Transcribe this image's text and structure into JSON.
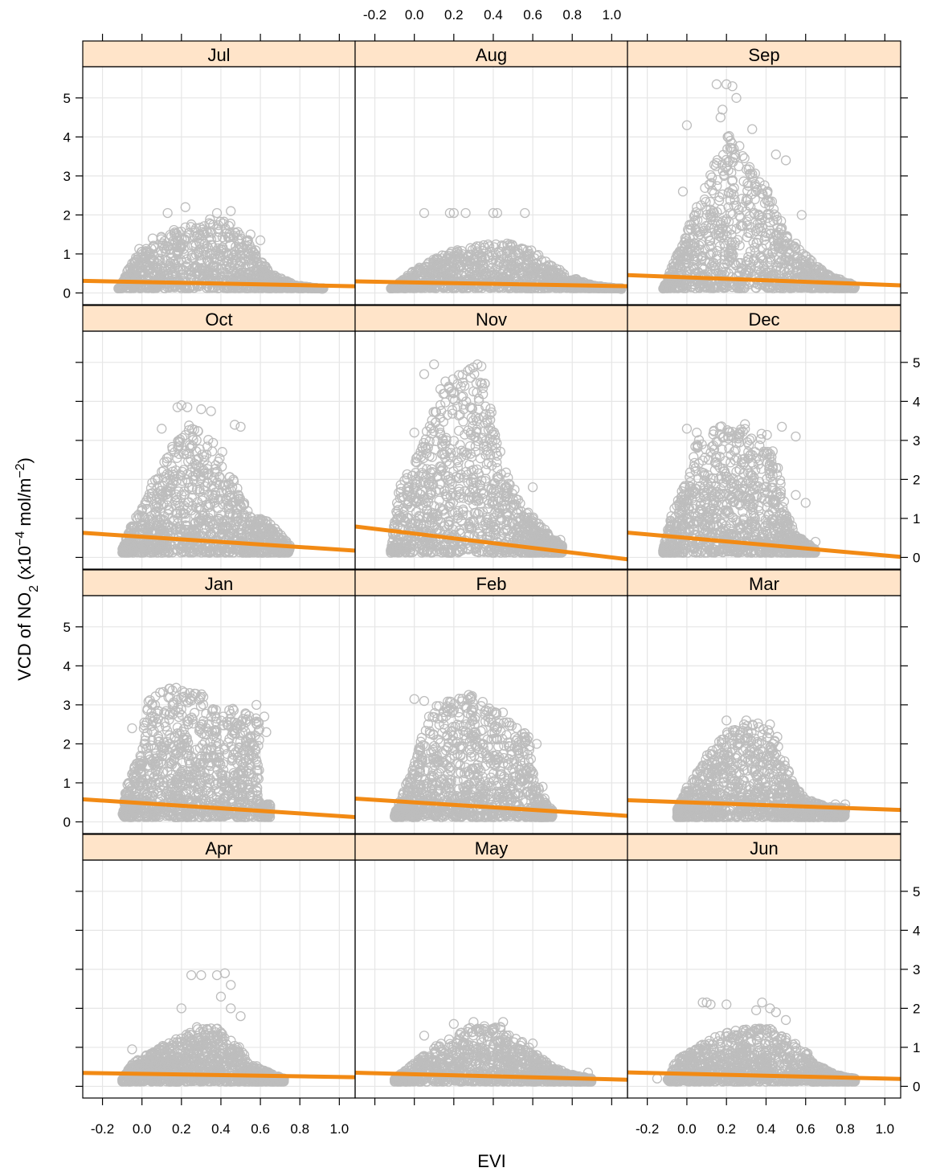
{
  "chart_data": {
    "type": "scatter",
    "xlabel": "EVI",
    "ylabel": {
      "prefix": "VCD of NO",
      "sub": "2",
      "mid": " (x10",
      "sup1": "−4",
      "mid2": " mol/m",
      "sup2": "−2",
      "suffix": ")"
    },
    "xlim": [
      -0.3,
      1.08
    ],
    "ylim": [
      -0.3,
      5.8
    ],
    "x_ticks": [
      -0.2,
      0.0,
      0.2,
      0.4,
      0.6,
      0.8,
      1.0
    ],
    "x_tick_labels": [
      "-0.2",
      "0.0",
      "0.2",
      "0.4",
      "0.6",
      "0.8",
      "1.0"
    ],
    "y_ticks": [
      0,
      1,
      2,
      3,
      4,
      5
    ],
    "y_tick_labels": [
      "0",
      "1",
      "2",
      "3",
      "4",
      "5"
    ],
    "grid": true,
    "colors": {
      "points": "#bdbdbd",
      "fit_line": "#f28a14",
      "strip_bg": "#ffe4c9",
      "grid": "#e6e6e6",
      "frame": "#000000"
    },
    "panels": [
      {
        "month": "Jul",
        "fit": [
          0.28,
          -0.1
        ],
        "envelope": [
          [
            -0.12,
            0.1
          ],
          [
            0.0,
            1.3
          ],
          [
            0.15,
            1.6
          ],
          [
            0.25,
            1.8
          ],
          [
            0.35,
            1.9
          ],
          [
            0.45,
            1.8
          ],
          [
            0.55,
            1.3
          ],
          [
            0.65,
            0.5
          ],
          [
            0.78,
            0.2
          ],
          [
            0.92,
            0.1
          ]
        ],
        "outliers": [
          [
            0.22,
            2.2
          ],
          [
            0.13,
            2.05
          ],
          [
            0.38,
            2.05
          ],
          [
            0.45,
            2.1
          ],
          [
            0.55,
            1.5
          ],
          [
            0.6,
            1.35
          ]
        ]
      },
      {
        "month": "Aug",
        "fit": [
          0.27,
          -0.09
        ],
        "envelope": [
          [
            -0.12,
            0.1
          ],
          [
            0.0,
            0.6
          ],
          [
            0.15,
            1.0
          ],
          [
            0.3,
            1.25
          ],
          [
            0.45,
            1.3
          ],
          [
            0.6,
            1.1
          ],
          [
            0.7,
            0.7
          ],
          [
            0.8,
            0.4
          ],
          [
            0.9,
            0.2
          ],
          [
            1.05,
            0.1
          ]
        ],
        "outliers": [
          [
            0.05,
            2.05
          ],
          [
            0.18,
            2.05
          ],
          [
            0.2,
            2.05
          ],
          [
            0.26,
            2.05
          ],
          [
            0.4,
            2.05
          ],
          [
            0.42,
            2.05
          ],
          [
            0.56,
            2.05
          ]
        ]
      },
      {
        "month": "Sep",
        "fit": [
          0.4,
          -0.19
        ],
        "envelope": [
          [
            -0.12,
            0.1
          ],
          [
            -0.05,
            1.0
          ],
          [
            0.05,
            2.2
          ],
          [
            0.15,
            3.5
          ],
          [
            0.2,
            4.1
          ],
          [
            0.3,
            3.6
          ],
          [
            0.4,
            2.7
          ],
          [
            0.5,
            1.6
          ],
          [
            0.6,
            1.0
          ],
          [
            0.7,
            0.5
          ],
          [
            0.85,
            0.2
          ]
        ],
        "outliers": [
          [
            0.15,
            5.35
          ],
          [
            0.2,
            5.35
          ],
          [
            0.23,
            5.3
          ],
          [
            0.25,
            5.0
          ],
          [
            0.18,
            4.7
          ],
          [
            0.17,
            4.5
          ],
          [
            0.0,
            4.3
          ],
          [
            0.33,
            4.2
          ],
          [
            0.45,
            3.55
          ],
          [
            0.5,
            3.4
          ],
          [
            -0.02,
            2.6
          ],
          [
            0.05,
            2.2
          ],
          [
            0.58,
            2.0
          ]
        ]
      },
      {
        "month": "Oct",
        "fit": [
          0.53,
          -0.33
        ],
        "envelope": [
          [
            -0.1,
            0.2
          ],
          [
            -0.05,
            0.9
          ],
          [
            0.05,
            1.9
          ],
          [
            0.15,
            2.8
          ],
          [
            0.22,
            3.5
          ],
          [
            0.3,
            3.3
          ],
          [
            0.4,
            2.8
          ],
          [
            0.5,
            1.6
          ],
          [
            0.55,
            1.1
          ],
          [
            0.65,
            0.9
          ],
          [
            0.75,
            0.3
          ]
        ],
        "outliers": [
          [
            0.18,
            3.85
          ],
          [
            0.2,
            3.9
          ],
          [
            0.23,
            3.85
          ],
          [
            0.3,
            3.8
          ],
          [
            0.35,
            3.75
          ],
          [
            0.47,
            3.4
          ],
          [
            0.5,
            3.35
          ],
          [
            0.1,
            3.3
          ]
        ]
      },
      {
        "month": "Nov",
        "fit": [
          0.61,
          -0.61
        ],
        "envelope": [
          [
            -0.12,
            0.2
          ],
          [
            -0.08,
            1.8
          ],
          [
            0.0,
            2.5
          ],
          [
            0.1,
            3.8
          ],
          [
            0.15,
            4.8
          ],
          [
            0.25,
            4.9
          ],
          [
            0.35,
            4.85
          ],
          [
            0.4,
            3.6
          ],
          [
            0.45,
            2.5
          ],
          [
            0.55,
            1.3
          ],
          [
            0.65,
            0.8
          ],
          [
            0.75,
            0.3
          ]
        ],
        "outliers": [
          [
            0.05,
            4.7
          ],
          [
            0.1,
            4.95
          ],
          [
            0.32,
            4.95
          ],
          [
            0.34,
            4.9
          ],
          [
            0.0,
            3.2
          ],
          [
            0.02,
            2.6
          ],
          [
            0.6,
            1.8
          ],
          [
            0.7,
            0.45
          ],
          [
            0.74,
            0.45
          ]
        ]
      },
      {
        "month": "Dec",
        "fit": [
          0.5,
          -0.45
        ],
        "envelope": [
          [
            -0.12,
            0.2
          ],
          [
            -0.08,
            1.1
          ],
          [
            0.0,
            2.0
          ],
          [
            0.05,
            3.0
          ],
          [
            0.1,
            3.2
          ],
          [
            0.2,
            3.45
          ],
          [
            0.3,
            3.45
          ],
          [
            0.4,
            3.2
          ],
          [
            0.45,
            2.6
          ],
          [
            0.5,
            1.2
          ],
          [
            0.55,
            0.6
          ],
          [
            0.65,
            0.2
          ]
        ],
        "outliers": [
          [
            0.0,
            3.3
          ],
          [
            0.05,
            3.2
          ],
          [
            0.48,
            3.35
          ],
          [
            0.55,
            3.1
          ],
          [
            0.55,
            1.6
          ],
          [
            0.6,
            1.4
          ],
          [
            0.65,
            0.4
          ]
        ]
      },
      {
        "month": "Jan",
        "fit": [
          0.48,
          -0.33
        ],
        "envelope": [
          [
            -0.1,
            0.2
          ],
          [
            -0.08,
            0.9
          ],
          [
            0.0,
            1.9
          ],
          [
            0.02,
            3.1
          ],
          [
            0.1,
            3.4
          ],
          [
            0.2,
            3.45
          ],
          [
            0.35,
            3.2
          ],
          [
            0.45,
            2.9
          ],
          [
            0.55,
            2.9
          ],
          [
            0.6,
            2.5
          ],
          [
            0.55,
            1.5
          ],
          [
            0.4,
            1.0
          ],
          [
            0.45,
            0.6
          ],
          [
            0.65,
            0.45
          ]
        ],
        "outliers": [
          [
            -0.05,
            2.4
          ],
          [
            0.58,
            3.0
          ],
          [
            0.62,
            2.7
          ],
          [
            0.63,
            2.3
          ]
        ]
      },
      {
        "month": "Feb",
        "fit": [
          0.5,
          -0.32
        ],
        "envelope": [
          [
            -0.1,
            0.2
          ],
          [
            -0.05,
            0.9
          ],
          [
            0.0,
            1.5
          ],
          [
            0.05,
            2.5
          ],
          [
            0.1,
            3.0
          ],
          [
            0.2,
            3.2
          ],
          [
            0.3,
            3.35
          ],
          [
            0.4,
            3.1
          ],
          [
            0.5,
            2.6
          ],
          [
            0.58,
            2.2
          ],
          [
            0.6,
            1.3
          ],
          [
            0.65,
            0.6
          ],
          [
            0.7,
            0.3
          ]
        ],
        "outliers": [
          [
            0.0,
            3.15
          ],
          [
            0.05,
            3.1
          ],
          [
            0.62,
            2.0
          ],
          [
            0.65,
            0.9
          ],
          [
            0.66,
            0.6
          ]
        ]
      },
      {
        "month": "Mar",
        "fit": [
          0.5,
          -0.18
        ],
        "envelope": [
          [
            -0.05,
            0.3
          ],
          [
            0.0,
            0.9
          ],
          [
            0.05,
            1.4
          ],
          [
            0.15,
            2.0
          ],
          [
            0.25,
            2.55
          ],
          [
            0.35,
            2.55
          ],
          [
            0.45,
            2.3
          ],
          [
            0.5,
            1.5
          ],
          [
            0.55,
            0.9
          ],
          [
            0.6,
            0.6
          ],
          [
            0.7,
            0.4
          ],
          [
            0.8,
            0.35
          ]
        ],
        "outliers": [
          [
            0.2,
            2.6
          ],
          [
            0.3,
            2.6
          ],
          [
            0.42,
            2.5
          ],
          [
            0.75,
            0.45
          ],
          [
            0.8,
            0.45
          ]
        ]
      },
      {
        "month": "Apr",
        "fit": [
          0.32,
          -0.08
        ],
        "envelope": [
          [
            -0.1,
            0.2
          ],
          [
            -0.05,
            0.6
          ],
          [
            0.05,
            0.9
          ],
          [
            0.2,
            1.3
          ],
          [
            0.3,
            1.6
          ],
          [
            0.4,
            1.5
          ],
          [
            0.5,
            1.0
          ],
          [
            0.55,
            0.6
          ],
          [
            0.65,
            0.35
          ],
          [
            0.72,
            0.2
          ]
        ],
        "outliers": [
          [
            0.25,
            2.85
          ],
          [
            0.3,
            2.85
          ],
          [
            0.38,
            2.85
          ],
          [
            0.42,
            2.9
          ],
          [
            0.45,
            2.6
          ],
          [
            0.4,
            2.3
          ],
          [
            0.45,
            2.0
          ],
          [
            0.2,
            2.0
          ],
          [
            0.5,
            1.8
          ],
          [
            -0.05,
            0.95
          ]
        ]
      },
      {
        "month": "May",
        "fit": [
          0.31,
          -0.13
        ],
        "envelope": [
          [
            -0.1,
            0.2
          ],
          [
            0.0,
            0.6
          ],
          [
            0.1,
            1.0
          ],
          [
            0.2,
            1.3
          ],
          [
            0.3,
            1.55
          ],
          [
            0.4,
            1.6
          ],
          [
            0.5,
            1.4
          ],
          [
            0.6,
            0.9
          ],
          [
            0.7,
            0.5
          ],
          [
            0.8,
            0.3
          ],
          [
            0.9,
            0.2
          ]
        ],
        "outliers": [
          [
            0.05,
            1.3
          ],
          [
            0.2,
            1.6
          ],
          [
            0.3,
            1.65
          ],
          [
            0.45,
            1.65
          ],
          [
            0.6,
            1.1
          ],
          [
            0.88,
            0.35
          ]
        ]
      },
      {
        "month": "Jun",
        "fit": [
          0.32,
          -0.12
        ],
        "envelope": [
          [
            -0.1,
            0.2
          ],
          [
            -0.05,
            0.7
          ],
          [
            0.05,
            1.0
          ],
          [
            0.15,
            1.3
          ],
          [
            0.3,
            1.5
          ],
          [
            0.45,
            1.5
          ],
          [
            0.55,
            1.2
          ],
          [
            0.65,
            0.6
          ],
          [
            0.75,
            0.3
          ],
          [
            0.85,
            0.2
          ]
        ],
        "outliers": [
          [
            0.08,
            2.15
          ],
          [
            0.1,
            2.15
          ],
          [
            0.12,
            2.1
          ],
          [
            0.2,
            2.1
          ],
          [
            0.38,
            2.15
          ],
          [
            0.35,
            1.95
          ],
          [
            0.42,
            2.0
          ],
          [
            0.45,
            1.9
          ],
          [
            0.5,
            1.7
          ],
          [
            -0.15,
            0.2
          ]
        ]
      }
    ]
  }
}
